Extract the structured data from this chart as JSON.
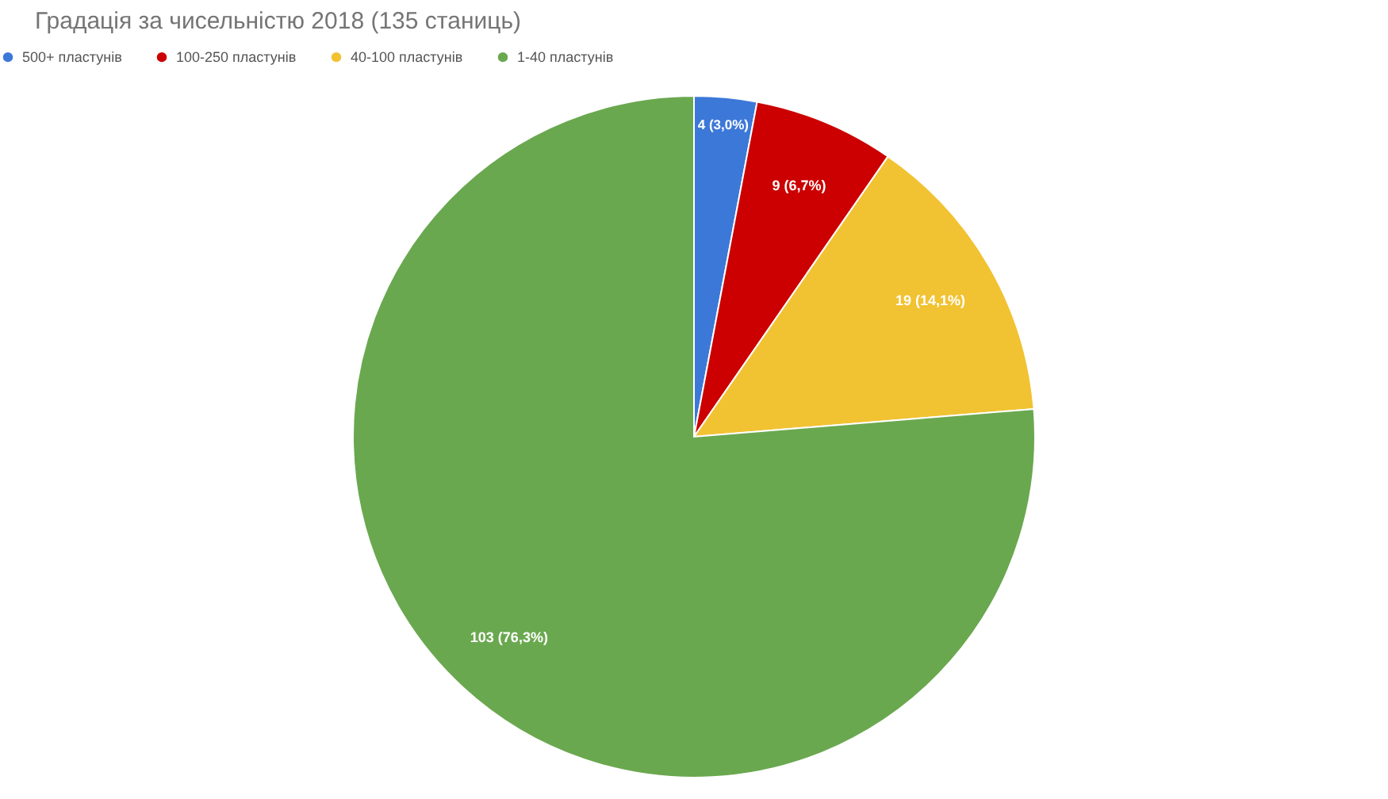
{
  "chart_data": {
    "type": "pie",
    "title": "Градація за чисельністю 2018 (135 станиць)",
    "categories": [
      "500+ пластунів",
      "100-250 пластунів",
      "40-100 пластунів",
      "1-40 пластунів"
    ],
    "values": [
      4,
      9,
      19,
      103
    ],
    "colors": [
      "#3c78d8",
      "#cc0000",
      "#f1c232",
      "#6aa84f"
    ],
    "value_labels": [
      "4 (3,0%)",
      "9 (6,7%)",
      "19 (14,1%)",
      "103 (76,3%)"
    ],
    "legend": "top"
  }
}
